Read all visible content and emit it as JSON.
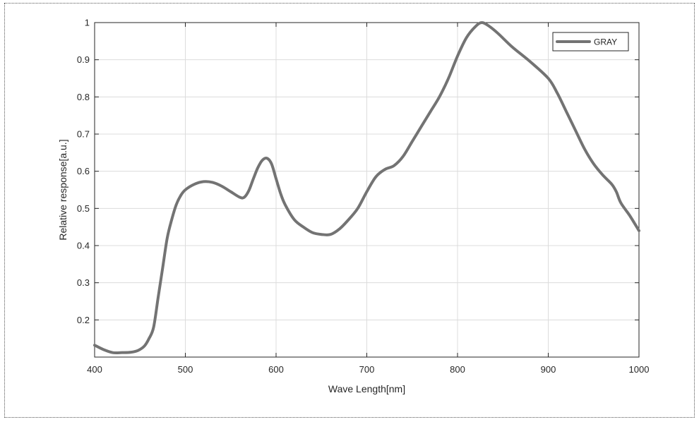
{
  "chart_data": {
    "type": "line",
    "title": "",
    "xlabel": "Wave Length[nm]",
    "ylabel": "Relative response[a.u.]",
    "xlim": [
      400,
      1000
    ],
    "ylim": [
      0.1,
      1.0
    ],
    "xticks": [
      400,
      500,
      600,
      700,
      800,
      900,
      1000
    ],
    "yticks": [
      0.2,
      0.3,
      0.4,
      0.5,
      0.6,
      0.7,
      0.8,
      0.9,
      1
    ],
    "grid": true,
    "legend_position": "top-right",
    "series": [
      {
        "name": "GRAY",
        "color": "#737373",
        "x": [
          400,
          410,
          420,
          430,
          440,
          448,
          455,
          460,
          465,
          470,
          475,
          480,
          485,
          490,
          495,
          500,
          510,
          520,
          530,
          540,
          550,
          560,
          565,
          570,
          575,
          580,
          585,
          590,
          595,
          600,
          605,
          610,
          620,
          630,
          640,
          650,
          660,
          670,
          680,
          690,
          700,
          710,
          720,
          730,
          740,
          750,
          760,
          770,
          780,
          790,
          800,
          810,
          820,
          827,
          835,
          845,
          860,
          880,
          900,
          910,
          920,
          930,
          940,
          950,
          960,
          970,
          975,
          980,
          990,
          1000
        ],
        "y": [
          0.132,
          0.12,
          0.112,
          0.112,
          0.113,
          0.118,
          0.13,
          0.15,
          0.18,
          0.26,
          0.34,
          0.42,
          0.47,
          0.51,
          0.535,
          0.55,
          0.565,
          0.572,
          0.57,
          0.56,
          0.545,
          0.53,
          0.53,
          0.548,
          0.58,
          0.61,
          0.63,
          0.635,
          0.62,
          0.58,
          0.54,
          0.51,
          0.47,
          0.45,
          0.435,
          0.43,
          0.43,
          0.445,
          0.47,
          0.5,
          0.545,
          0.585,
          0.605,
          0.615,
          0.64,
          0.68,
          0.72,
          0.76,
          0.8,
          0.85,
          0.91,
          0.96,
          0.99,
          1.0,
          0.99,
          0.97,
          0.935,
          0.895,
          0.85,
          0.81,
          0.76,
          0.71,
          0.66,
          0.62,
          0.59,
          0.565,
          0.545,
          0.515,
          0.48,
          0.44
        ]
      }
    ]
  }
}
